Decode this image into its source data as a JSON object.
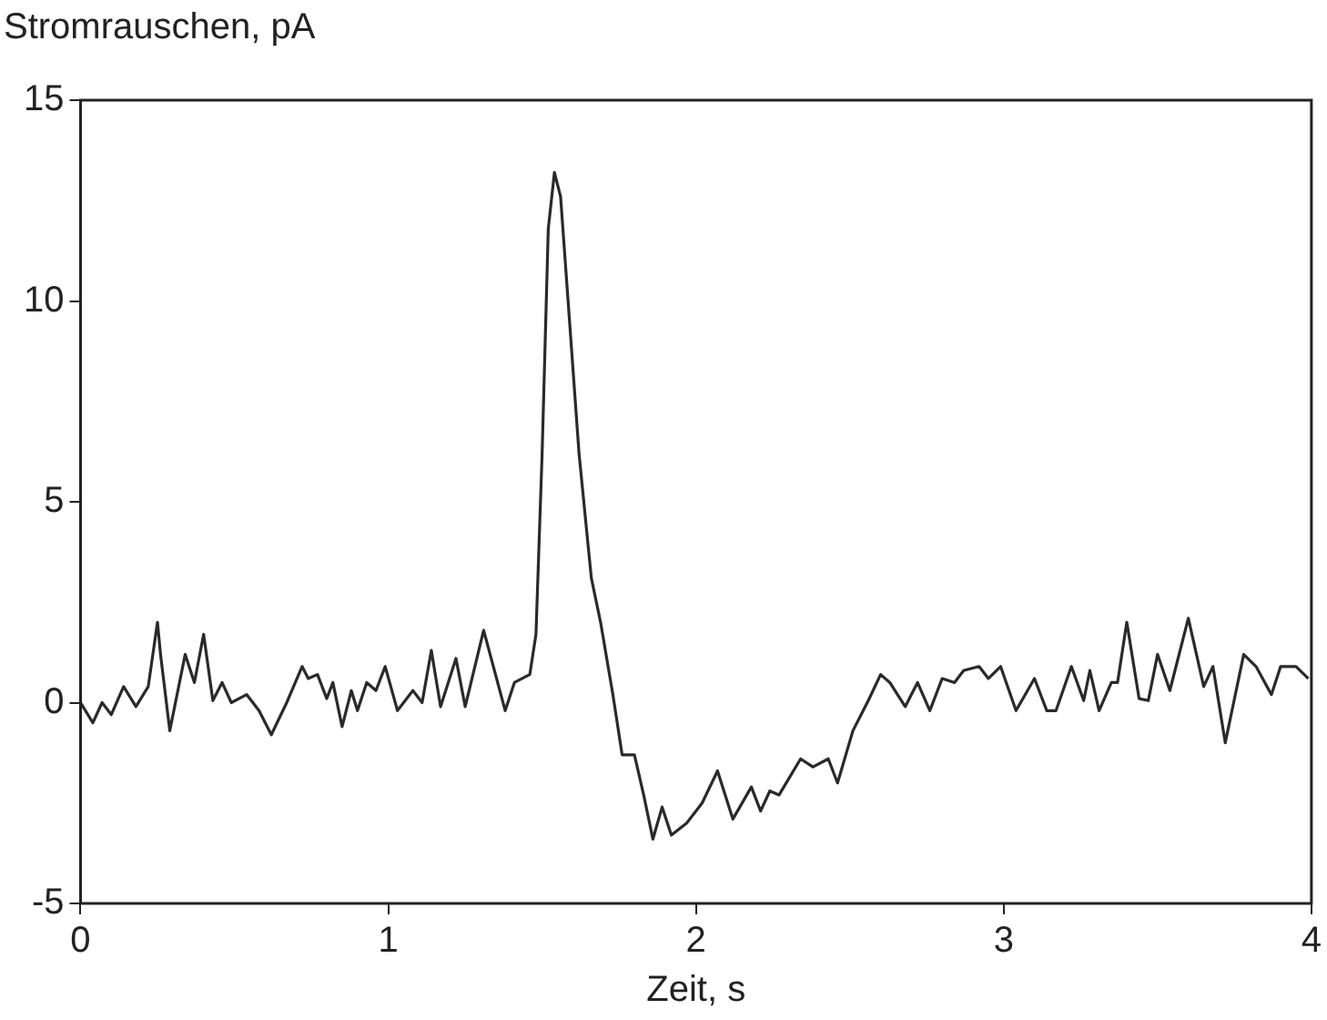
{
  "chart_data": {
    "type": "line",
    "ylabel": "Stromrauschen, pA",
    "xlabel": "Zeit, s",
    "xlim": [
      0,
      4
    ],
    "xticks": [
      0,
      1,
      2,
      3,
      4
    ],
    "ylim": [
      -5,
      15
    ],
    "yticks": [
      -5,
      0,
      5,
      10,
      15
    ],
    "grid": false,
    "legend": false,
    "marker": "none",
    "line_style": "solid",
    "series": [
      {
        "color": "#2a2a2a",
        "x": [
          0,
          0.04,
          0.07,
          0.1,
          0.14,
          0.18,
          0.22,
          0.25,
          0.26,
          0.29,
          0.34,
          0.37,
          0.4,
          0.43,
          0.46,
          0.49,
          0.54,
          0.58,
          0.62,
          0.67,
          0.72,
          0.74,
          0.77,
          0.8,
          0.82,
          0.85,
          0.88,
          0.9,
          0.93,
          0.96,
          0.99,
          1.03,
          1.08,
          1.11,
          1.14,
          1.17,
          1.22,
          1.25,
          1.31,
          1.38,
          1.41,
          1.46,
          1.48,
          1.5,
          1.52,
          1.54,
          1.56,
          1.59,
          1.62,
          1.66,
          1.69,
          1.73,
          1.76,
          1.8,
          1.83,
          1.86,
          1.89,
          1.92,
          1.97,
          2.02,
          2.07,
          2.12,
          2.18,
          2.21,
          2.24,
          2.27,
          2.34,
          2.38,
          2.43,
          2.46,
          2.51,
          2.56,
          2.6,
          2.63,
          2.68,
          2.72,
          2.76,
          2.8,
          2.84,
          2.87,
          2.92,
          2.95,
          2.99,
          3.04,
          3.1,
          3.14,
          3.17,
          3.22,
          3.26,
          3.28,
          3.31,
          3.35,
          3.37,
          3.4,
          3.44,
          3.47,
          3.5,
          3.54,
          3.6,
          3.65,
          3.68,
          3.72,
          3.78,
          3.82,
          3.87,
          3.9,
          3.95,
          3.99
        ],
        "values": [
          0,
          -0.5,
          0,
          -0.3,
          0.4,
          -0.1,
          0.4,
          2.0,
          1.2,
          -0.7,
          1.2,
          0.5,
          1.7,
          0.05,
          0.5,
          0,
          0.2,
          -0.2,
          -0.8,
          0,
          0.9,
          0.6,
          0.7,
          0.1,
          0.5,
          -0.6,
          0.3,
          -0.2,
          0.5,
          0.3,
          0.9,
          -0.2,
          0.3,
          0,
          1.3,
          -0.1,
          1.1,
          -0.1,
          1.8,
          -0.2,
          0.5,
          0.7,
          1.7,
          6.2,
          11.8,
          13.2,
          12.6,
          9.4,
          6.2,
          3.1,
          2.0,
          0.2,
          -1.3,
          -1.3,
          -2.3,
          -3.4,
          -2.6,
          -3.3,
          -3.0,
          -2.5,
          -1.7,
          -2.9,
          -2.1,
          -2.7,
          -2.2,
          -2.3,
          -1.4,
          -1.6,
          -1.4,
          -2.0,
          -0.7,
          0.05,
          0.7,
          0.5,
          -0.1,
          0.5,
          -0.2,
          0.6,
          0.5,
          0.8,
          0.9,
          0.6,
          0.9,
          -0.2,
          0.6,
          -0.2,
          -0.2,
          0.9,
          0.05,
          0.8,
          -0.2,
          0.5,
          0.5,
          2.0,
          0.1,
          0.05,
          1.2,
          0.3,
          2.1,
          0.4,
          0.9,
          -1.0,
          1.2,
          0.9,
          0.2,
          0.9,
          0.9,
          0.6
        ]
      }
    ]
  }
}
